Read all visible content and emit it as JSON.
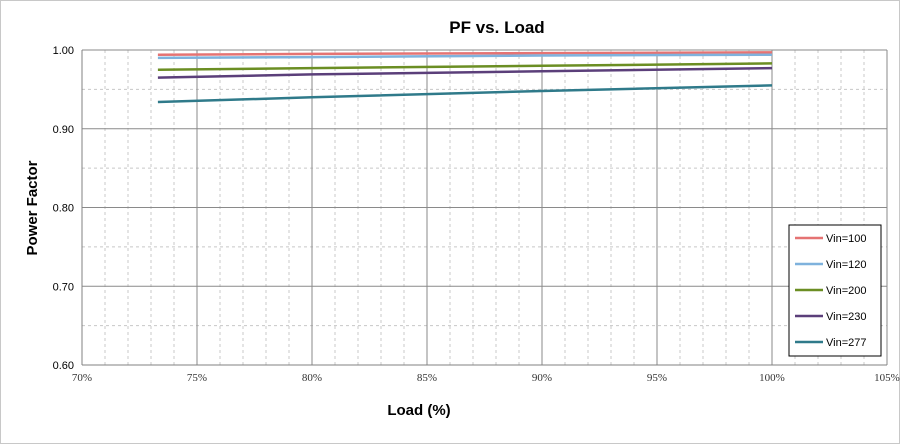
{
  "chart_data": {
    "type": "line",
    "title": "PF  vs. Load",
    "xlabel": "Load (%)",
    "ylabel": "Power Factor",
    "xlim": [
      70,
      105
    ],
    "ylim": [
      0.6,
      1.0
    ],
    "x_ticks": [
      "70%",
      "75%",
      "80%",
      "85%",
      "90%",
      "95%",
      "100%",
      "105%"
    ],
    "y_ticks": [
      "0.60",
      "0.70",
      "0.80",
      "0.90",
      "1.00"
    ],
    "grid": true,
    "legend_position": "right",
    "x": [
      73.3,
      80,
      90,
      100
    ],
    "series": [
      {
        "name": "Vin=100",
        "color": "#e57373",
        "values": [
          0.994,
          0.995,
          0.996,
          0.997
        ]
      },
      {
        "name": "Vin=120",
        "color": "#7fb2dd",
        "values": [
          0.99,
          0.991,
          0.993,
          0.994
        ]
      },
      {
        "name": "Vin=200",
        "color": "#6b8e23",
        "values": [
          0.975,
          0.977,
          0.98,
          0.983
        ]
      },
      {
        "name": "Vin=230",
        "color": "#5b3f7a",
        "values": [
          0.965,
          0.969,
          0.973,
          0.977
        ]
      },
      {
        "name": "Vin=277",
        "color": "#2f7a8a",
        "values": [
          0.934,
          0.94,
          0.948,
          0.955
        ]
      }
    ]
  }
}
